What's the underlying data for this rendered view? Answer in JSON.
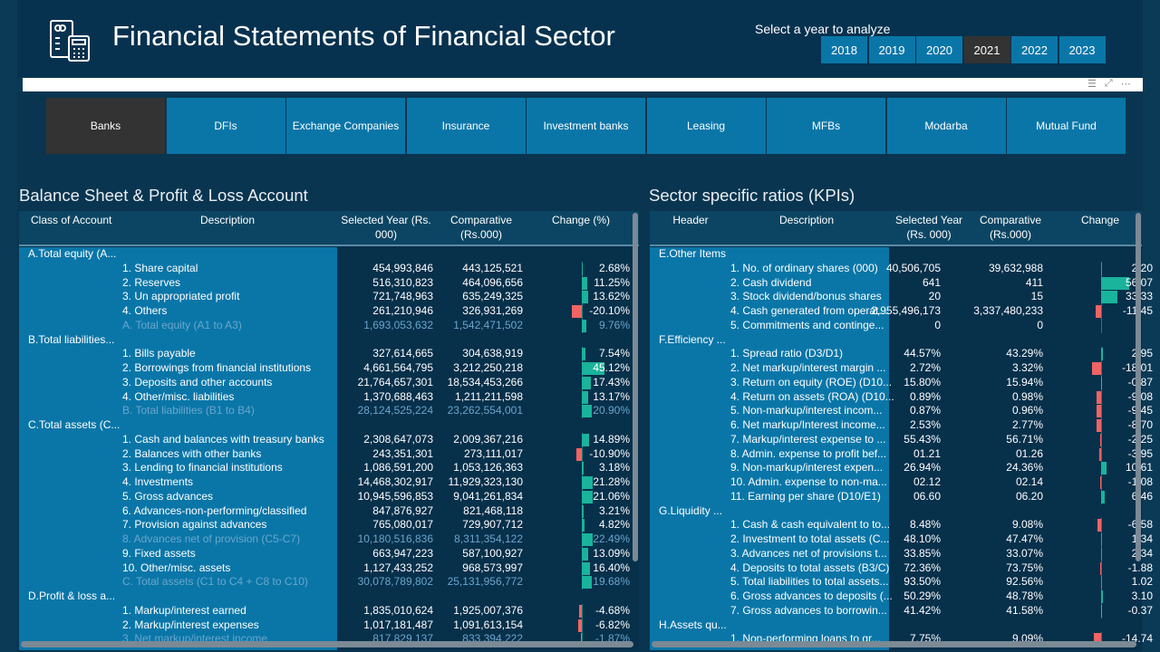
{
  "header": {
    "title": "Financial Statements of Financial Sector",
    "logo_icon": "financial-statement-calculator-icon",
    "year_label": "Select a year to analyze",
    "years": [
      "2018",
      "2019",
      "2020",
      "2021",
      "2022",
      "2023"
    ],
    "selected_year": "2021"
  },
  "visual_icons": [
    "filter-icon",
    "focus-mode-icon",
    "more-options-icon"
  ],
  "sectors": {
    "items": [
      "Banks",
      "DFIs",
      "Exchange Companies",
      "Insurance",
      "Investment banks",
      "Leasing",
      "MFBs",
      "Modarba",
      "Mutual Fund"
    ],
    "selected": "Banks"
  },
  "colors": {
    "positive": "#1ab39b",
    "negative": "#f06464",
    "accent": "#0a76a8",
    "selected": "#333333"
  },
  "left": {
    "title": "Balance Sheet & Profit & Loss Account",
    "headers": [
      "Class of Account",
      "Description",
      "Selected Year (Rs. 000)",
      "Comparative (Rs.000)",
      "Change (%)"
    ],
    "rows": [
      {
        "group": "A.Total equity (A..."
      },
      {
        "desc": "1. Share capital",
        "sel": "454,993,846",
        "cmp": "443,125,521",
        "chg": "2.68%",
        "v": 2.68
      },
      {
        "desc": "2. Reserves",
        "sel": "516,310,823",
        "cmp": "464,096,656",
        "chg": "11.25%",
        "v": 11.25
      },
      {
        "desc": "3. Un appropriated profit",
        "sel": "721,748,963",
        "cmp": "635,249,325",
        "chg": "13.62%",
        "v": 13.62
      },
      {
        "desc": "4. Others",
        "sel": "261,210,946",
        "cmp": "326,931,269",
        "chg": "-20.10%",
        "v": -20.1
      },
      {
        "desc": "A. Total equity (A1 to A3)",
        "sel": "1,693,053,632",
        "cmp": "1,542,471,502",
        "chg": "9.76%",
        "v": 9.76,
        "total": true
      },
      {
        "group": "B.Total liabilities..."
      },
      {
        "desc": "1. Bills payable",
        "sel": "327,614,665",
        "cmp": "304,638,919",
        "chg": "7.54%",
        "v": 7.54
      },
      {
        "desc": "2. Borrowings from financial institutions",
        "sel": "4,661,564,795",
        "cmp": "3,212,250,218",
        "chg": "45.12%",
        "v": 45.12
      },
      {
        "desc": "3. Deposits and other accounts",
        "sel": "21,764,657,301",
        "cmp": "18,534,453,266",
        "chg": "17.43%",
        "v": 17.43
      },
      {
        "desc": "4. Other/misc. liabilities",
        "sel": "1,370,688,463",
        "cmp": "1,211,211,598",
        "chg": "13.17%",
        "v": 13.17
      },
      {
        "desc": "B. Total liabilities (B1 to B4)",
        "sel": "28,124,525,224",
        "cmp": "23,262,554,001",
        "chg": "20.90%",
        "v": 20.9,
        "total": true
      },
      {
        "group": "C.Total assets (C..."
      },
      {
        "desc": "1. Cash and balances with treasury banks",
        "sel": "2,308,647,073",
        "cmp": "2,009,367,216",
        "chg": "14.89%",
        "v": 14.89
      },
      {
        "desc": "2. Balances with other banks",
        "sel": "243,351,301",
        "cmp": "273,111,017",
        "chg": "-10.90%",
        "v": -10.9
      },
      {
        "desc": "3. Lending to financial institutions",
        "sel": "1,086,591,200",
        "cmp": "1,053,126,363",
        "chg": "3.18%",
        "v": 3.18
      },
      {
        "desc": "4. Investments",
        "sel": "14,468,302,917",
        "cmp": "11,929,323,130",
        "chg": "21.28%",
        "v": 21.28
      },
      {
        "desc": "5. Gross advances",
        "sel": "10,945,596,853",
        "cmp": "9,041,261,834",
        "chg": "21.06%",
        "v": 21.06
      },
      {
        "desc": "6. Advances-non-performing/classified",
        "sel": "847,876,927",
        "cmp": "821,468,118",
        "chg": "3.21%",
        "v": 3.21
      },
      {
        "desc": "7. Provision against advances",
        "sel": "765,080,017",
        "cmp": "729,907,712",
        "chg": "4.82%",
        "v": 4.82
      },
      {
        "desc": "8. Advances net of provision (C5-C7)",
        "sel": "10,180,516,836",
        "cmp": "8,311,354,122",
        "chg": "22.49%",
        "v": 22.49,
        "total": true
      },
      {
        "desc": "9. Fixed assets",
        "sel": "663,947,223",
        "cmp": "587,100,927",
        "chg": "13.09%",
        "v": 13.09
      },
      {
        "desc": "10. Other/misc. assets",
        "sel": "1,127,433,252",
        "cmp": "968,573,997",
        "chg": "16.40%",
        "v": 16.4
      },
      {
        "desc": "C. Total assets (C1 to C4 + C8 to C10)",
        "sel": "30,078,789,802",
        "cmp": "25,131,956,772",
        "chg": "19.68%",
        "v": 19.68,
        "total": true
      },
      {
        "group": "D.Profit & loss a..."
      },
      {
        "desc": "1. Markup/interest earned",
        "sel": "1,835,010,624",
        "cmp": "1,925,007,376",
        "chg": "-4.68%",
        "v": -4.68
      },
      {
        "desc": "2. Markup/interest expenses",
        "sel": "1,017,181,487",
        "cmp": "1,091,613,154",
        "chg": "-6.82%",
        "v": -6.82
      },
      {
        "desc": "3. Net markup/interest income",
        "sel": "817,829,137",
        "cmp": "833,394,222",
        "chg": "-1.87%",
        "v": -1.87,
        "total": true
      }
    ]
  },
  "right": {
    "title": "Sector specific ratios (KPIs)",
    "headers": [
      "Header",
      "Description",
      "Selected Year (Rs. 000)",
      "Comparative (Rs.000)",
      "Change"
    ],
    "rows": [
      {
        "group": "E.Other Items"
      },
      {
        "desc": "1. No. of ordinary shares (000)",
        "sel": "40,506,705",
        "cmp": "39,632,988",
        "chg": "2.20",
        "v": 2.2
      },
      {
        "desc": "2. Cash dividend",
        "sel": "641",
        "cmp": "411",
        "chg": "56.07",
        "v": 56.07
      },
      {
        "desc": "3. Stock dividend/bonus shares",
        "sel": "20",
        "cmp": "15",
        "chg": "33.33",
        "v": 33.33
      },
      {
        "desc": "4. Cash generated from operat...",
        "sel": "2,955,496,173",
        "cmp": "3,337,480,233",
        "chg": "-11.45",
        "v": -11.45
      },
      {
        "desc": "5. Commitments and continge...",
        "sel": "0",
        "cmp": "0",
        "chg": "",
        "v": 0
      },
      {
        "group": "F.Efficiency ..."
      },
      {
        "desc": "1. Spread ratio (D3/D1)",
        "sel": "44.57%",
        "cmp": "43.29%",
        "chg": "2.95",
        "v": 2.95
      },
      {
        "desc": "2. Net markup/interest margin ...",
        "sel": "2.72%",
        "cmp": "3.32%",
        "chg": "-18.01",
        "v": -18.01
      },
      {
        "desc": "3. Return on equity (ROE) (D10...",
        "sel": "15.80%",
        "cmp": "15.94%",
        "chg": "-0.87",
        "v": -0.87
      },
      {
        "desc": "4. Return on assets (ROA) (D10...",
        "sel": "0.89%",
        "cmp": "0.98%",
        "chg": "-9.08",
        "v": -9.08
      },
      {
        "desc": "5. Non-markup/interest incom...",
        "sel": "0.87%",
        "cmp": "0.96%",
        "chg": "-9.45",
        "v": -9.45
      },
      {
        "desc": "6. Net markup/Interest income...",
        "sel": "2.53%",
        "cmp": "2.77%",
        "chg": "-8.70",
        "v": -8.7
      },
      {
        "desc": "7. Markup/interest expense to ...",
        "sel": "55.43%",
        "cmp": "56.71%",
        "chg": "-2.25",
        "v": -2.25
      },
      {
        "desc": "8. Admin. expense to profit bef...",
        "sel": "01.21",
        "cmp": "01.26",
        "chg": "-3.95",
        "v": -3.95
      },
      {
        "desc": "9. Non-markup/interest expen...",
        "sel": "26.94%",
        "cmp": "24.36%",
        "chg": "10.61",
        "v": 10.61
      },
      {
        "desc": "10. Admin. expense to non-ma...",
        "sel": "02.12",
        "cmp": "02.14",
        "chg": "-1.08",
        "v": -1.08
      },
      {
        "desc": "11. Earning per share (D10/E1)",
        "sel": "06.60",
        "cmp": "06.20",
        "chg": "6.46",
        "v": 6.46
      },
      {
        "group": "G.Liquidity ..."
      },
      {
        "desc": "1. Cash & cash equivalent to to...",
        "sel": "8.48%",
        "cmp": "9.08%",
        "chg": "-6.58",
        "v": -6.58
      },
      {
        "desc": "2. Investment to total assets (C...",
        "sel": "48.10%",
        "cmp": "47.47%",
        "chg": "1.34",
        "v": 1.34
      },
      {
        "desc": "3. Advances net of provisions t...",
        "sel": "33.85%",
        "cmp": "33.07%",
        "chg": "2.34",
        "v": 2.34
      },
      {
        "desc": "4. Deposits to total assets (B3/C)",
        "sel": "72.36%",
        "cmp": "73.75%",
        "chg": "-1.88",
        "v": -1.88
      },
      {
        "desc": "5. Total liabilities to total assets...",
        "sel": "93.50%",
        "cmp": "92.56%",
        "chg": "1.02",
        "v": 1.02
      },
      {
        "desc": "6. Gross advances to deposits (...",
        "sel": "50.29%",
        "cmp": "48.78%",
        "chg": "3.10",
        "v": 3.1
      },
      {
        "desc": "7. Gross advances to borrowin...",
        "sel": "41.42%",
        "cmp": "41.58%",
        "chg": "-0.37",
        "v": -0.37
      },
      {
        "group": "H.Assets qu..."
      },
      {
        "desc": "1. Non-performing loans to gr...",
        "sel": "7.75%",
        "cmp": "9.09%",
        "chg": "-14.74",
        "v": -14.74
      }
    ]
  }
}
